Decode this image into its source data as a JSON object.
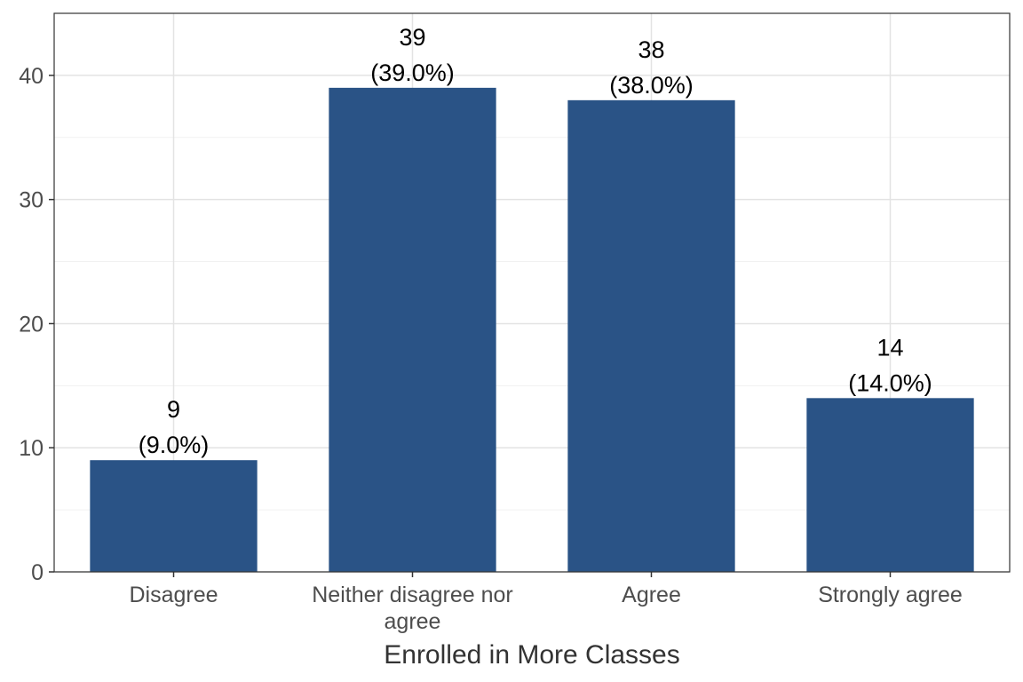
{
  "chart_data": {
    "type": "bar",
    "categories": [
      "Disagree",
      "Neither disagree nor agree",
      "Agree",
      "Strongly agree"
    ],
    "category_label_lines": [
      [
        "Disagree"
      ],
      [
        "Neither disagree nor",
        "agree"
      ],
      [
        "Agree"
      ],
      [
        "Strongly agree"
      ]
    ],
    "values": [
      9,
      39,
      38,
      14
    ],
    "data_labels": [
      [
        "9",
        "(9.0%)"
      ],
      [
        "39",
        "(39.0%)"
      ],
      [
        "38",
        "(38.0%)"
      ],
      [
        "14",
        "(14.0%)"
      ]
    ],
    "title": "",
    "xlabel": "Enrolled in More Classes",
    "ylabel": "",
    "ylim": [
      0,
      45
    ],
    "yticks": [
      0,
      10,
      20,
      30,
      40
    ],
    "grid": true,
    "legend": "none",
    "colors": {
      "bar": "#2a5386",
      "panel_border": "#333333",
      "grid_major": "#e3e3e3",
      "grid_minor": "#f1f1f1",
      "tick": "#333333"
    }
  }
}
